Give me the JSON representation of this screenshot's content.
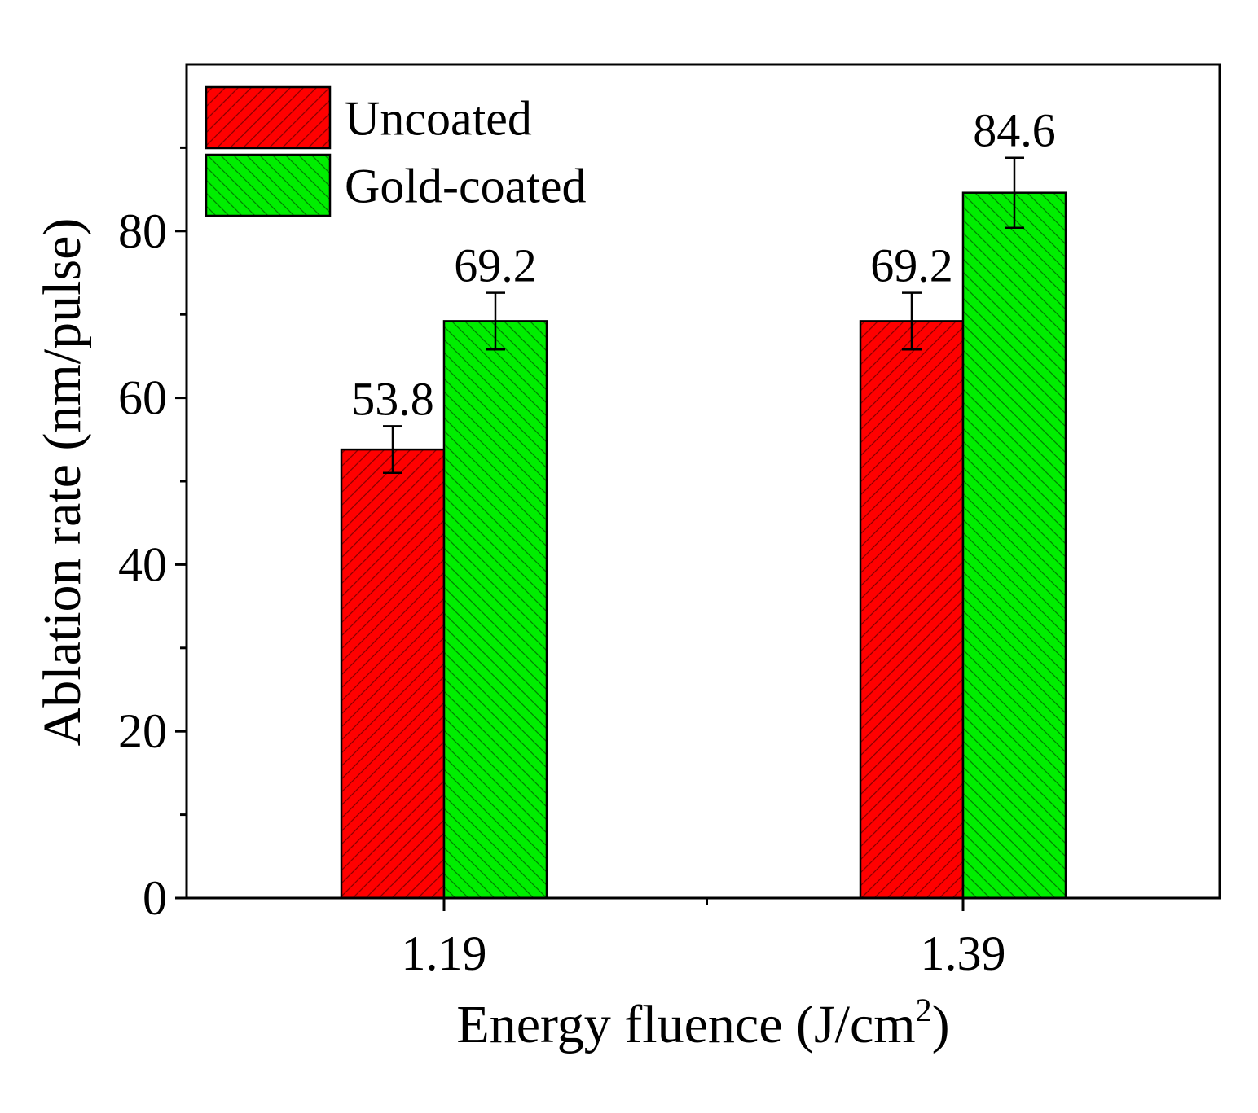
{
  "chart_data": {
    "type": "bar",
    "title": "",
    "xlabel": "Energy fluence (J/cm",
    "xlabel_superscript": "2",
    "xlabel_suffix": ")",
    "ylabel": "Ablation rate (nm/pulse)",
    "categories": [
      "1.19",
      "1.39"
    ],
    "series": [
      {
        "name": "Uncoated",
        "color": "#ff0000",
        "hatch": "forward",
        "values": [
          53.8,
          69.2
        ],
        "errors": [
          2.8,
          3.4
        ],
        "labels": [
          "53.8",
          "69.2"
        ]
      },
      {
        "name": "Gold-coated",
        "color": "#00ee00",
        "hatch": "backward",
        "values": [
          69.2,
          84.6
        ],
        "errors": [
          3.4,
          4.2
        ],
        "labels": [
          "69.2",
          "84.6"
        ]
      }
    ],
    "ylim": [
      0,
      100
    ],
    "y_major_ticks": [
      0,
      20,
      40,
      60,
      80
    ],
    "y_minor_ticks": [
      10,
      30,
      50,
      70,
      90
    ],
    "grid": false,
    "legend_position": "top-left",
    "error_bars": true
  }
}
